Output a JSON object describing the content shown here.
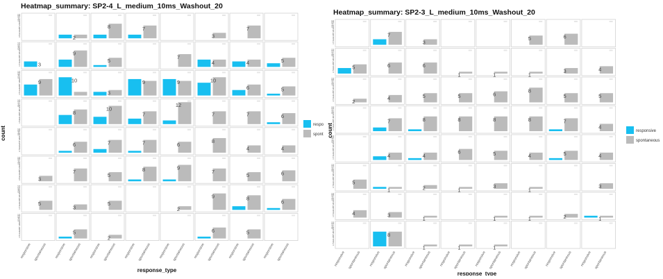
{
  "chart_data": [
    {
      "type": "bar",
      "title": "Heatmap_summary: SP2-4_L_medium_10ms_Washout_20",
      "xlabel": "response_type",
      "ylabel": "count",
      "categories": [
        "response",
        "spontaneous"
      ],
      "tick_labels": [
        "responsive",
        "spontaneous"
      ],
      "legend": {
        "position": "right",
        "entries": [
          "respo",
          "spont"
        ]
      },
      "colors": {
        "response": "#18bff0",
        "spontaneous": "#bbbbbb"
      },
      "y_ticks": [
        "1",
        "2",
        "3",
        "4",
        "5",
        "6",
        "7",
        "8",
        "9",
        "10",
        "11",
        "12",
        "13"
      ],
      "ylim": [
        0,
        13
      ],
      "grid_rows": 8,
      "grid_cols": 8,
      "panels": [
        [
          [
            0,
            0
          ],
          [
            2,
            2
          ],
          [
            2,
            8
          ],
          [
            2,
            7
          ],
          [
            0,
            0
          ],
          [
            0,
            3
          ],
          [
            0,
            7
          ],
          [
            0,
            0
          ]
        ],
        [
          [
            3,
            0
          ],
          [
            4,
            9
          ],
          [
            1,
            5
          ],
          [
            0,
            0
          ],
          [
            0,
            7
          ],
          [
            4,
            4
          ],
          [
            3,
            4
          ],
          [
            2,
            5
          ]
        ],
        [
          [
            6,
            9
          ],
          [
            10,
            2
          ],
          [
            2,
            3
          ],
          [
            9,
            8
          ],
          [
            9,
            8
          ],
          [
            7,
            10
          ],
          [
            3,
            6
          ],
          [
            1,
            5
          ]
        ],
        [
          [
            0,
            0
          ],
          [
            5,
            8
          ],
          [
            4,
            10
          ],
          [
            3,
            7
          ],
          [
            2,
            12
          ],
          [
            0,
            7
          ],
          [
            0,
            7
          ],
          [
            1,
            6
          ]
        ],
        [
          [
            0,
            0
          ],
          [
            1,
            6
          ],
          [
            2,
            7
          ],
          [
            1,
            7
          ],
          [
            0,
            6
          ],
          [
            0,
            8
          ],
          [
            0,
            4
          ],
          [
            0,
            4
          ]
        ],
        [
          [
            0,
            3
          ],
          [
            0,
            7
          ],
          [
            0,
            5
          ],
          [
            1,
            8
          ],
          [
            1,
            9
          ],
          [
            0,
            7
          ],
          [
            0,
            5
          ],
          [
            0,
            6
          ]
        ],
        [
          [
            0,
            5
          ],
          [
            0,
            3
          ],
          [
            0,
            5
          ],
          [
            0,
            0
          ],
          [
            0,
            2
          ],
          [
            0,
            9
          ],
          [
            2,
            8
          ],
          [
            1,
            6
          ]
        ],
        [
          [
            0,
            0
          ],
          [
            1,
            5
          ],
          [
            0,
            2
          ],
          [
            0,
            0
          ],
          [
            0,
            0
          ],
          [
            1,
            6
          ],
          [
            0,
            5
          ],
          [
            0,
            0
          ]
        ]
      ]
    },
    {
      "type": "bar",
      "title": "Heatmap_summary: SP2-3_L_medium_10ms_Washout_20",
      "xlabel": "response_type",
      "ylabel": "count",
      "categories": [
        "response",
        "spontaneous"
      ],
      "tick_labels": [
        "responsive",
        "spontaneous"
      ],
      "legend": {
        "position": "right",
        "entries": [
          "responsive",
          "spontaneous"
        ]
      },
      "colors": {
        "response": "#18bff0",
        "spontaneous": "#bbbbbb"
      },
      "y_ticks": [
        "1",
        "2",
        "3",
        "4",
        "5",
        "6",
        "7",
        "8",
        "9",
        "10",
        "11",
        "12",
        "13"
      ],
      "ylim": [
        0,
        13
      ],
      "grid_rows": 8,
      "grid_cols": 8,
      "panels": [
        [
          [
            0,
            0
          ],
          [
            3,
            7
          ],
          [
            0,
            3
          ],
          [
            0,
            0
          ],
          [
            0,
            0
          ],
          [
            0,
            5
          ],
          [
            0,
            6
          ],
          [
            0,
            0
          ]
        ],
        [
          [
            3,
            5
          ],
          [
            0,
            6
          ],
          [
            0,
            6
          ],
          [
            0,
            1
          ],
          [
            0,
            1
          ],
          [
            0,
            1
          ],
          [
            0,
            3
          ],
          [
            0,
            4
          ]
        ],
        [
          [
            0,
            2
          ],
          [
            0,
            4
          ],
          [
            0,
            5
          ],
          [
            0,
            5
          ],
          [
            0,
            6
          ],
          [
            0,
            8
          ],
          [
            0,
            5
          ],
          [
            0,
            5
          ]
        ],
        [
          [
            0,
            0
          ],
          [
            2,
            7
          ],
          [
            1,
            8
          ],
          [
            0,
            8
          ],
          [
            0,
            8
          ],
          [
            0,
            8
          ],
          [
            1,
            7
          ],
          [
            0,
            4
          ]
        ],
        [
          [
            0,
            0
          ],
          [
            2,
            4
          ],
          [
            1,
            4
          ],
          [
            0,
            6
          ],
          [
            0,
            5
          ],
          [
            0,
            4
          ],
          [
            1,
            5
          ],
          [
            0,
            4
          ]
        ],
        [
          [
            0,
            5
          ],
          [
            1,
            1
          ],
          [
            0,
            2
          ],
          [
            0,
            1
          ],
          [
            0,
            3
          ],
          [
            0,
            1
          ],
          [
            0,
            0
          ],
          [
            0,
            3
          ]
        ],
        [
          [
            0,
            4
          ],
          [
            0,
            3
          ],
          [
            0,
            1
          ],
          [
            0,
            0
          ],
          [
            0,
            1
          ],
          [
            0,
            1
          ],
          [
            0,
            2
          ],
          [
            1,
            1
          ]
        ],
        [
          [
            0,
            0
          ],
          [
            8,
            8
          ],
          [
            0,
            1
          ],
          [
            0,
            1
          ],
          [
            0,
            1
          ],
          [
            0,
            0
          ],
          [
            0,
            0
          ],
          [
            0,
            0
          ]
        ]
      ]
    }
  ]
}
